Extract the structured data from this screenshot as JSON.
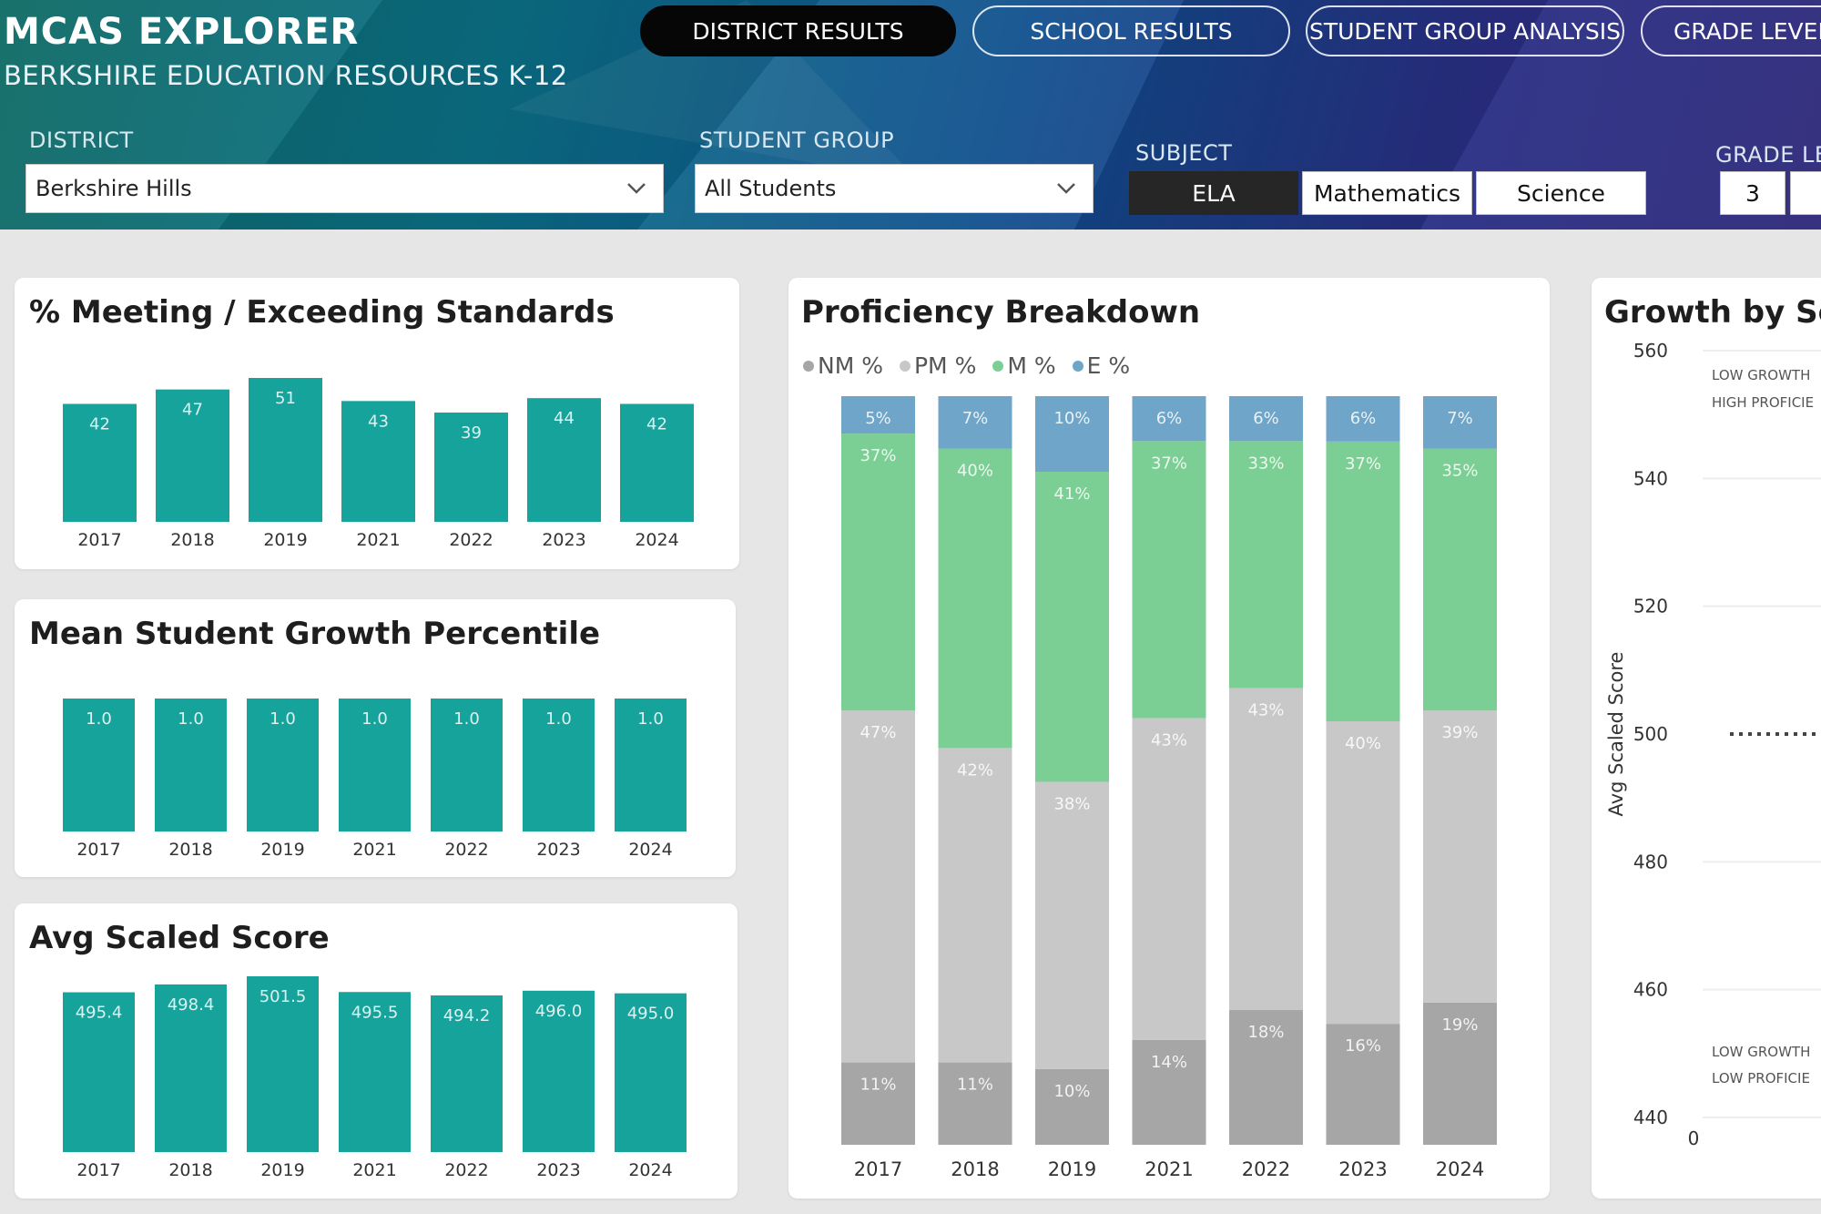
{
  "header": {
    "app_title": "MCAS EXPLORER",
    "subtitle": "BERKSHIRE EDUCATION RESOURCES K-12",
    "nav": [
      {
        "label": "DISTRICT RESULTS",
        "active": true
      },
      {
        "label": "SCHOOL RESULTS",
        "active": false
      },
      {
        "label": "STUDENT GROUP ANALYSIS",
        "active": false
      },
      {
        "label": "GRADE LEVEL",
        "active": false
      }
    ]
  },
  "filters": {
    "district": {
      "label": "DISTRICT",
      "value": "Berkshire Hills",
      "icon": "chevron-down-icon"
    },
    "student_group": {
      "label": "STUDENT GROUP",
      "value": "All Students",
      "icon": "chevron-down-icon"
    },
    "subject": {
      "label": "SUBJECT",
      "options": [
        "ELA",
        "Mathematics",
        "Science"
      ],
      "selected": "ELA"
    },
    "grade_level": {
      "label": "GRADE LE",
      "visible_option": "3"
    }
  },
  "colors": {
    "bar": "#16a39b",
    "nm": "#a6a6a6",
    "pm": "#c8c8c8",
    "m": "#7ccf94",
    "e": "#6ea5c8"
  },
  "chart_data": [
    {
      "type": "bar",
      "title": "% Meeting / Exceeding Standards",
      "categories": [
        "2017",
        "2018",
        "2019",
        "2021",
        "2022",
        "2023",
        "2024"
      ],
      "values": [
        42,
        47,
        51,
        43,
        39,
        44,
        42
      ],
      "labels": [
        "42",
        "47",
        "51",
        "43",
        "39",
        "44",
        "42"
      ]
    },
    {
      "type": "bar",
      "title": "Mean Student Growth Percentile",
      "categories": [
        "2017",
        "2018",
        "2019",
        "2021",
        "2022",
        "2023",
        "2024"
      ],
      "values": [
        1.0,
        1.0,
        1.0,
        1.0,
        1.0,
        1.0,
        1.0
      ],
      "labels": [
        "1.0",
        "1.0",
        "1.0",
        "1.0",
        "1.0",
        "1.0",
        "1.0"
      ]
    },
    {
      "type": "bar",
      "title": "Avg Scaled Score",
      "categories": [
        "2017",
        "2018",
        "2019",
        "2021",
        "2022",
        "2023",
        "2024"
      ],
      "values": [
        495.4,
        498.4,
        501.5,
        495.5,
        494.2,
        496.0,
        495.0
      ],
      "labels": [
        "495.4",
        "498.4",
        "501.5",
        "495.5",
        "494.2",
        "496.0",
        "495.0"
      ]
    },
    {
      "type": "bar",
      "stacked": true,
      "title": "Proficiency Breakdown",
      "categories": [
        "2017",
        "2018",
        "2019",
        "2021",
        "2022",
        "2023",
        "2024"
      ],
      "series": [
        {
          "name": "NM %",
          "values": [
            11,
            11,
            10,
            14,
            18,
            16,
            19
          ],
          "labels": [
            "11%",
            "11%",
            "10%",
            "14%",
            "18%",
            "16%",
            "19%"
          ]
        },
        {
          "name": "PM %",
          "values": [
            47,
            42,
            38,
            43,
            43,
            40,
            39
          ],
          "labels": [
            "47%",
            "42%",
            "38%",
            "43%",
            "43%",
            "40%",
            "39%"
          ]
        },
        {
          "name": "M %",
          "values": [
            37,
            40,
            41,
            37,
            33,
            37,
            35
          ],
          "labels": [
            "37%",
            "40%",
            "41%",
            "37%",
            "33%",
            "37%",
            "35%"
          ]
        },
        {
          "name": "E %",
          "values": [
            5,
            7,
            10,
            6,
            6,
            6,
            7
          ],
          "labels": [
            "5%",
            "7%",
            "10%",
            "6%",
            "6%",
            "6%",
            "7%"
          ]
        }
      ],
      "legend_position": "top-left"
    },
    {
      "type": "scatter",
      "title": "Growth by Sca",
      "ylabel": "Avg Scaled Score",
      "yticks": [
        560,
        540,
        520,
        500,
        480,
        460,
        440
      ],
      "ylim": [
        440,
        560
      ],
      "xtick_first": "0",
      "reference_line_y": 500,
      "quadrant_labels": [
        "LOW GROWTH",
        "HIGH PROFICIE",
        "LOW GROWTH",
        "LOW PROFICIE"
      ]
    }
  ]
}
